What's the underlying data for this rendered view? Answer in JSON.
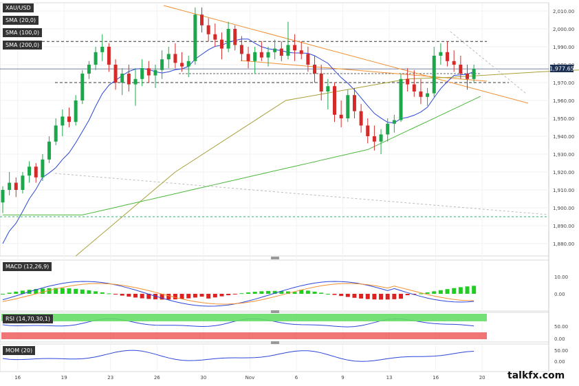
{
  "symbol": "XAU/USD",
  "indicators": {
    "sma1": "SMA (20,0)",
    "sma2": "SMA (100,0)",
    "sma3": "SMA (200,0)"
  },
  "panels": {
    "macd": "MACD (12,26,9)",
    "rsi": "RSI (14,70,30,1)",
    "mom": "MOM (20)"
  },
  "price_badge": "1,977.65",
  "watermark": "talkfx.com",
  "colors": {
    "up": "#1aa84a",
    "down": "#d42a2a",
    "sma20": "#2a45d8",
    "sma100": "#a8a038",
    "sma200": "#4cb83c",
    "trend": "#f09030",
    "macd": "#2a45d8",
    "signal": "#f09030",
    "rsi_band_up": "#66dd66",
    "rsi_band_low": "#ee6666"
  },
  "x_axis": {
    "ticks": [
      {
        "i": 1,
        "label": "16"
      },
      {
        "i": 8,
        "label": "19"
      },
      {
        "i": 15,
        "label": "23"
      },
      {
        "i": 22,
        "label": "26"
      },
      {
        "i": 29,
        "label": "30"
      },
      {
        "i": 36,
        "label": "Nov"
      },
      {
        "i": 43,
        "label": "6"
      },
      {
        "i": 50,
        "label": "9"
      },
      {
        "i": 57,
        "label": "13"
      },
      {
        "i": 64,
        "label": "16"
      },
      {
        "i": 71,
        "label": "20"
      }
    ]
  },
  "y_axis": {
    "labels": [
      "2,010.00",
      "2,000.00",
      "1,990.00",
      "1,980.00",
      "1,970.00",
      "1,960.00",
      "1,950.00",
      "1,940.00",
      "1,930.00",
      "1,920.00",
      "1,910.00",
      "1,900.00",
      "1,890.00",
      "1,880.00"
    ]
  },
  "macd_axis": {
    "labels": [
      "10.00",
      "0.00"
    ]
  },
  "rsi_axis": {
    "labels": [
      "50.00",
      "0.00"
    ]
  },
  "mom_axis": {
    "labels": [
      "50.00",
      "0.00"
    ]
  },
  "chart_data": {
    "type": "candlestick",
    "range": [
      "2023-10-16",
      "2023-11-20"
    ],
    "ylim": [
      1873,
      2014
    ],
    "levels": [
      1993,
      1977.65,
      1970,
      1895
    ],
    "candles": [
      [
        1903,
        1912,
        1897,
        1910
      ],
      [
        1910,
        1920,
        1907,
        1914
      ],
      [
        1914,
        1917,
        1906,
        1910
      ],
      [
        1910,
        1920,
        1908,
        1918
      ],
      [
        1918,
        1926,
        1914,
        1923
      ],
      [
        1923,
        1925,
        1914,
        1917
      ],
      [
        1917,
        1930,
        1915,
        1927
      ],
      [
        1927,
        1940,
        1925,
        1937
      ],
      [
        1937,
        1950,
        1935,
        1946
      ],
      [
        1946,
        1955,
        1940,
        1951
      ],
      [
        1951,
        1956,
        1945,
        1948
      ],
      [
        1948,
        1963,
        1946,
        1960
      ],
      [
        1960,
        1977,
        1958,
        1975
      ],
      [
        1975,
        1982,
        1972,
        1980
      ],
      [
        1980,
        1990,
        1977,
        1987
      ],
      [
        1987,
        1997,
        1982,
        1990
      ],
      [
        1990,
        1992,
        1976,
        1980
      ],
      [
        1980,
        1983,
        1966,
        1970
      ],
      [
        1970,
        1978,
        1963,
        1975
      ],
      [
        1975,
        1980,
        1965,
        1969
      ],
      [
        1969,
        1978,
        1957,
        1972
      ],
      [
        1972,
        1983,
        1968,
        1978
      ],
      [
        1978,
        1982,
        1970,
        1974
      ],
      [
        1974,
        1980,
        1967,
        1977
      ],
      [
        1977,
        1988,
        1972,
        1983
      ],
      [
        1983,
        1990,
        1978,
        1986
      ],
      [
        1986,
        1992,
        1978,
        1981
      ],
      [
        1981,
        1987,
        1976,
        1979
      ],
      [
        1979,
        1985,
        1973,
        1982
      ],
      [
        1982,
        2012,
        1980,
        2008
      ],
      [
        2008,
        2012,
        1998,
        2002
      ],
      [
        2002,
        2006,
        1993,
        1997
      ],
      [
        1997,
        2003,
        1990,
        1994
      ],
      [
        1994,
        1998,
        1983,
        1989
      ],
      [
        1989,
        2004,
        1987,
        2000
      ],
      [
        2000,
        2002,
        1988,
        1991
      ],
      [
        1991,
        1996,
        1982,
        1986
      ],
      [
        1986,
        1990,
        1978,
        1982
      ],
      [
        1982,
        1990,
        1975,
        1987
      ],
      [
        1987,
        1993,
        1982,
        1984
      ],
      [
        1984,
        1990,
        1979,
        1987
      ],
      [
        1987,
        1994,
        1983,
        1989
      ],
      [
        1989,
        1993,
        1982,
        1985
      ],
      [
        1985,
        2004,
        1983,
        1991
      ],
      [
        1991,
        1997,
        1982,
        1988
      ],
      [
        1988,
        1993,
        1983,
        1986
      ],
      [
        1986,
        1990,
        1976,
        1980
      ],
      [
        1980,
        1985,
        1970,
        1975
      ],
      [
        1975,
        1980,
        1960,
        1965
      ],
      [
        1965,
        1972,
        1955,
        1968
      ],
      [
        1968,
        1970,
        1948,
        1952
      ],
      [
        1952,
        1960,
        1945,
        1950
      ],
      [
        1950,
        1966,
        1948,
        1963
      ],
      [
        1963,
        1967,
        1950,
        1954
      ],
      [
        1954,
        1958,
        1942,
        1946
      ],
      [
        1946,
        1950,
        1936,
        1940
      ],
      [
        1940,
        1946,
        1932,
        1937
      ],
      [
        1937,
        1944,
        1930,
        1941
      ],
      [
        1941,
        1950,
        1937,
        1947
      ],
      [
        1947,
        1952,
        1942,
        1949
      ],
      [
        1949,
        1975,
        1948,
        1972
      ],
      [
        1972,
        1978,
        1965,
        1969
      ],
      [
        1969,
        1977,
        1962,
        1965
      ],
      [
        1965,
        1972,
        1958,
        1962
      ],
      [
        1962,
        1967,
        1957,
        1964
      ],
      [
        1964,
        1990,
        1962,
        1985
      ],
      [
        1985,
        1992,
        1980,
        1987
      ],
      [
        1987,
        1993,
        1979,
        1982
      ],
      [
        1982,
        1988,
        1976,
        1980
      ],
      [
        1980,
        1985,
        1972,
        1975
      ],
      [
        1975,
        1980,
        1966,
        1972
      ],
      [
        1972,
        1980,
        1970,
        1977.65
      ]
    ]
  }
}
